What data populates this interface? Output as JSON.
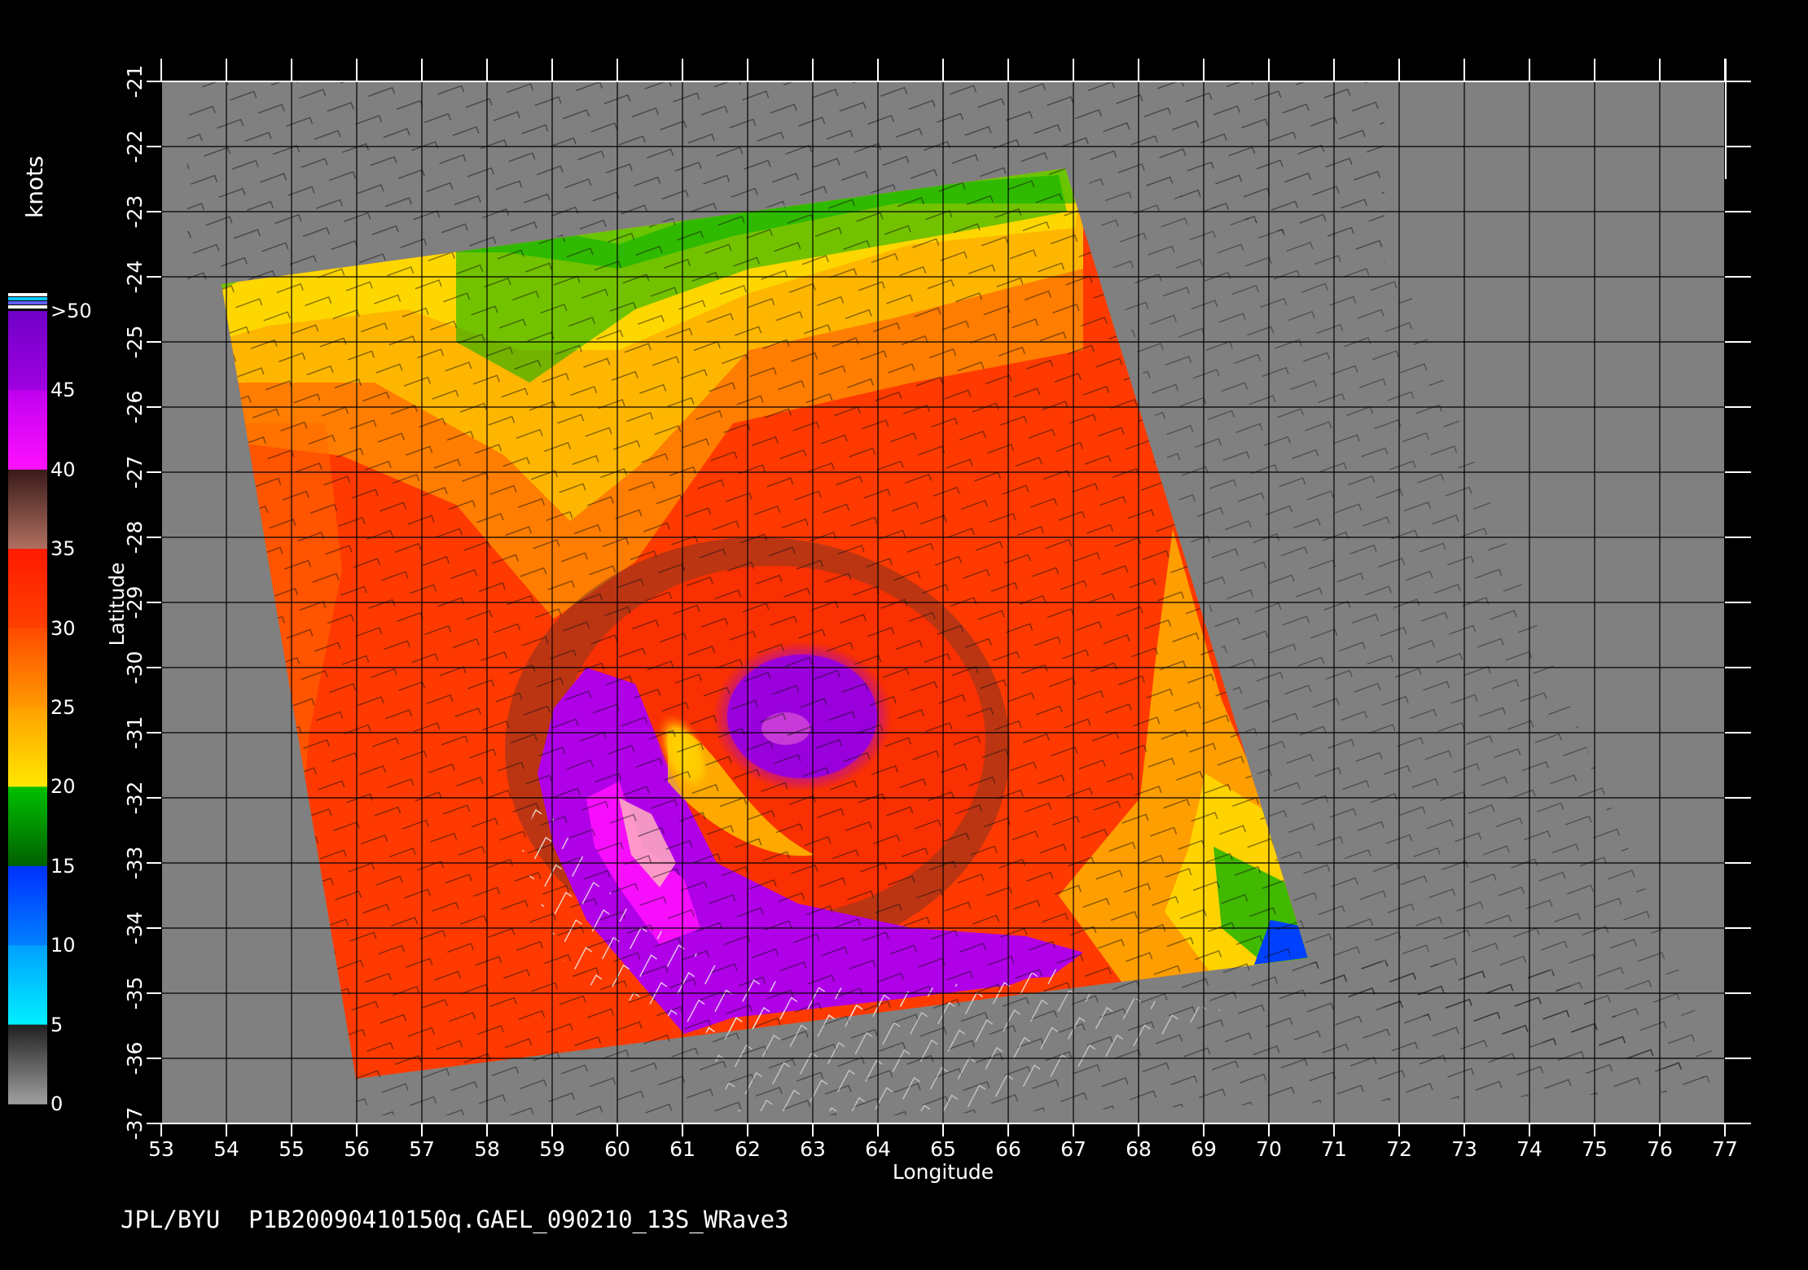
{
  "footer": {
    "text": "JPL/BYU  P1B20090410150q.GAEL_090210_13S_WRave3"
  },
  "axes": {
    "xlabel": "Longitude",
    "ylabel": "Latitude",
    "lon_ticks": [
      "53",
      "54",
      "55",
      "56",
      "57",
      "58",
      "59",
      "60",
      "61",
      "62",
      "63",
      "64",
      "65",
      "66",
      "67",
      "68",
      "69",
      "70",
      "71",
      "72",
      "73",
      "74",
      "75",
      "76",
      "77"
    ],
    "lat_ticks": [
      "-21",
      "-22",
      "-23",
      "-24",
      "-25",
      "-26",
      "-27",
      "-28",
      "-29",
      "-30",
      "-31",
      "-32",
      "-33",
      "-34",
      "-35",
      "-36",
      "-37"
    ]
  },
  "colorbar": {
    "title": "knots",
    "labels": [
      ">50",
      "45",
      "40",
      "35",
      "30",
      "25",
      "20",
      "15",
      "10",
      "5",
      "0"
    ],
    "colors": [
      "#7a00cc",
      "#c000ff",
      "#ff10ff",
      "#5a3030",
      "#b07060",
      "#ff2000",
      "#ff6000",
      "#ff9a00",
      "#ffe000",
      "#00cc00",
      "#008000",
      "#0040ff",
      "#00a0ff",
      "#00e0ff",
      "#303030",
      "#808080"
    ]
  },
  "chart_data": {
    "type": "heatmap",
    "title": "",
    "xlabel": "Longitude",
    "ylabel": "Latitude",
    "xlim": [
      53,
      77
    ],
    "ylim": [
      -37,
      -21
    ],
    "grid": true,
    "colorbar_units": "knots",
    "colorbar_range": [
      0,
      50
    ],
    "swath_corners_lonlat": [
      [
        53.9,
        -24.1
      ],
      [
        66.8,
        -22.4
      ],
      [
        70.6,
        -34.4
      ],
      [
        56.0,
        -36.3
      ]
    ],
    "cyclone_center_lonlat": [
      61.2,
      -31.7
    ],
    "max_wind_knots": 50
  }
}
